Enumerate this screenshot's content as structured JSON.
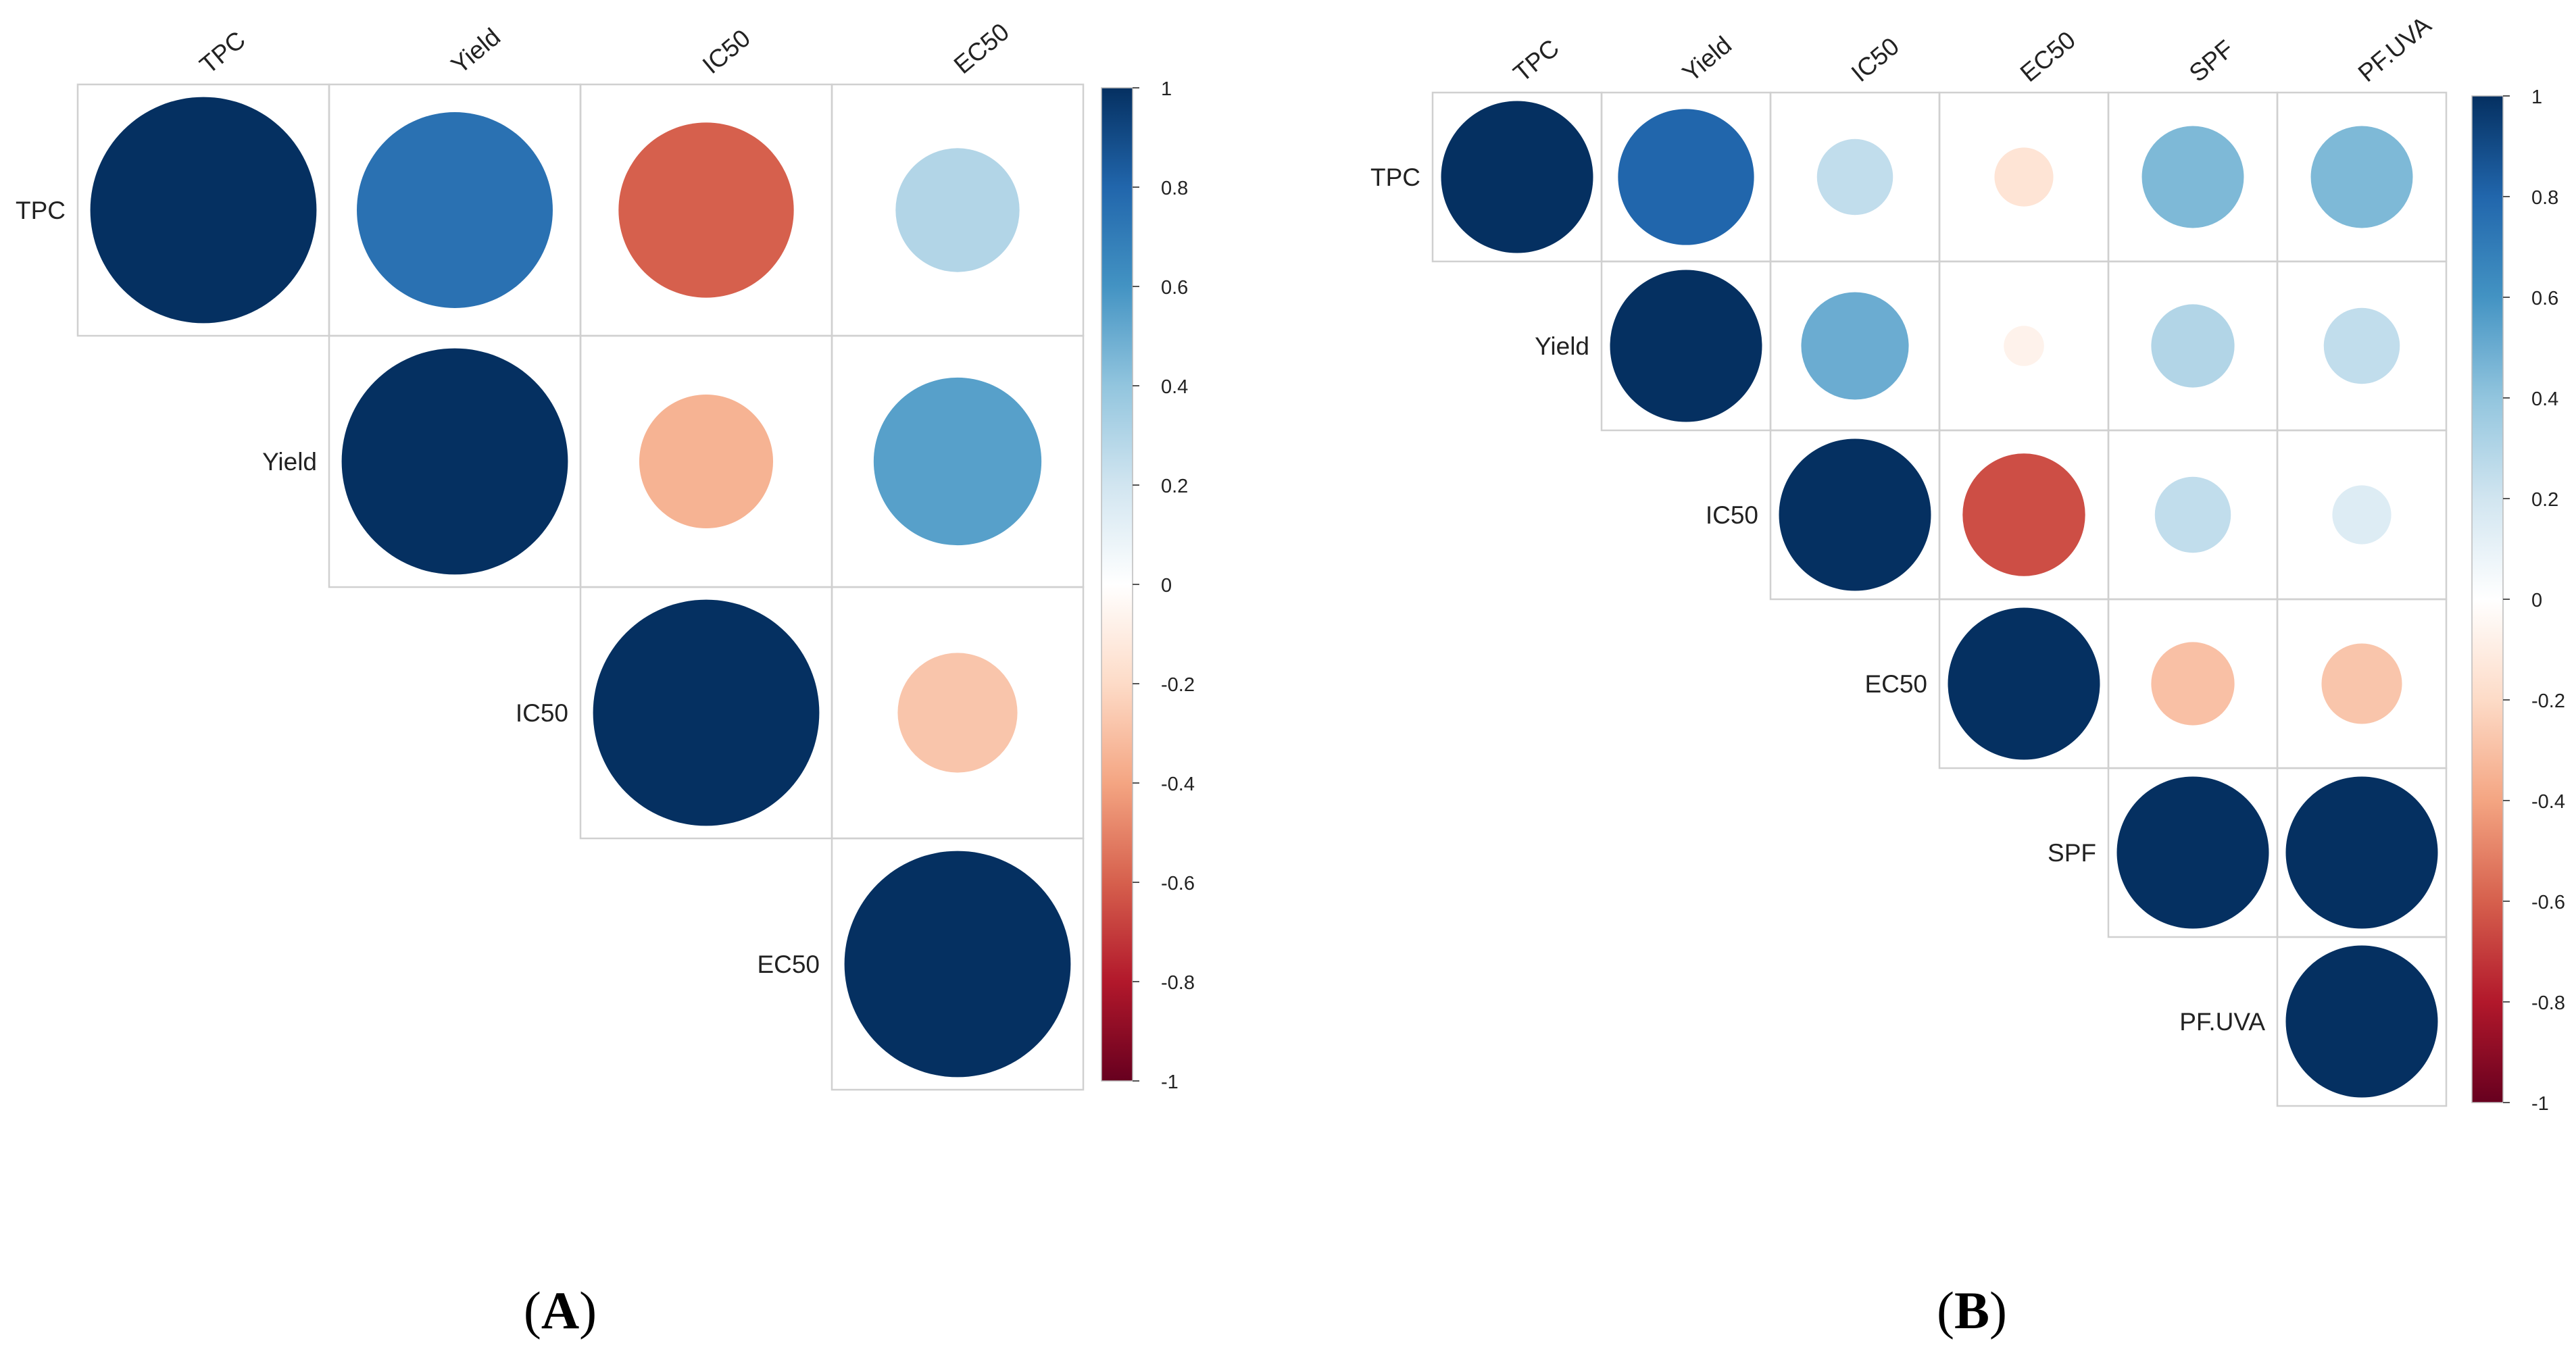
{
  "figure": {
    "panel_labels": [
      {
        "open": "(",
        "letter": "A",
        "close": ")"
      },
      {
        "open": "(",
        "letter": "B",
        "close": ")"
      }
    ]
  },
  "chart_data": [
    {
      "type": "heatmap",
      "style": "correlation-circles",
      "panel": "A",
      "variables": [
        "TPC",
        "Yield",
        "IC50",
        "EC50"
      ],
      "matrix": [
        [
          1.0,
          0.75,
          -0.6,
          0.3
        ],
        [
          0.75,
          1.0,
          -0.35,
          0.55
        ],
        [
          -0.6,
          -0.35,
          1.0,
          -0.28
        ],
        [
          0.3,
          0.55,
          -0.28,
          1.0
        ]
      ],
      "color_scale": {
        "min": -1,
        "max": 1,
        "ticks": [
          "1",
          "0.8",
          "0.6",
          "0.4",
          "0.2",
          "0",
          "-0.2",
          "-0.4",
          "-0.6",
          "-0.8",
          "-1"
        ]
      }
    },
    {
      "type": "heatmap",
      "style": "correlation-circles",
      "panel": "B",
      "variables": [
        "TPC",
        "Yield",
        "IC50",
        "EC50",
        "SPF",
        "PF.UVA"
      ],
      "matrix": [
        [
          1.0,
          0.8,
          0.25,
          -0.15,
          0.45,
          0.45
        ],
        [
          0.8,
          1.0,
          0.5,
          -0.07,
          0.3,
          0.25
        ],
        [
          0.25,
          0.5,
          1.0,
          -0.65,
          0.25,
          0.15
        ],
        [
          -0.15,
          -0.07,
          -0.65,
          1.0,
          -0.3,
          -0.28
        ],
        [
          0.45,
          0.3,
          0.25,
          -0.3,
          1.0,
          1.0
        ],
        [
          0.45,
          0.25,
          0.15,
          -0.28,
          1.0,
          1.0
        ]
      ],
      "color_scale": {
        "min": -1,
        "max": 1,
        "ticks": [
          "1",
          "0.8",
          "0.6",
          "0.4",
          "0.2",
          "0",
          "-0.2",
          "-0.4",
          "-0.6",
          "-0.8",
          "-1"
        ]
      }
    }
  ],
  "colors": {
    "scale": [
      "#67001F",
      "#B2182B",
      "#D6604D",
      "#F4A582",
      "#FDDBC7",
      "#FFFFFF",
      "#D1E5F0",
      "#92C5DE",
      "#4393C3",
      "#2166AC",
      "#053061"
    ],
    "grid": "#d0d0d0",
    "label": "#222222"
  }
}
